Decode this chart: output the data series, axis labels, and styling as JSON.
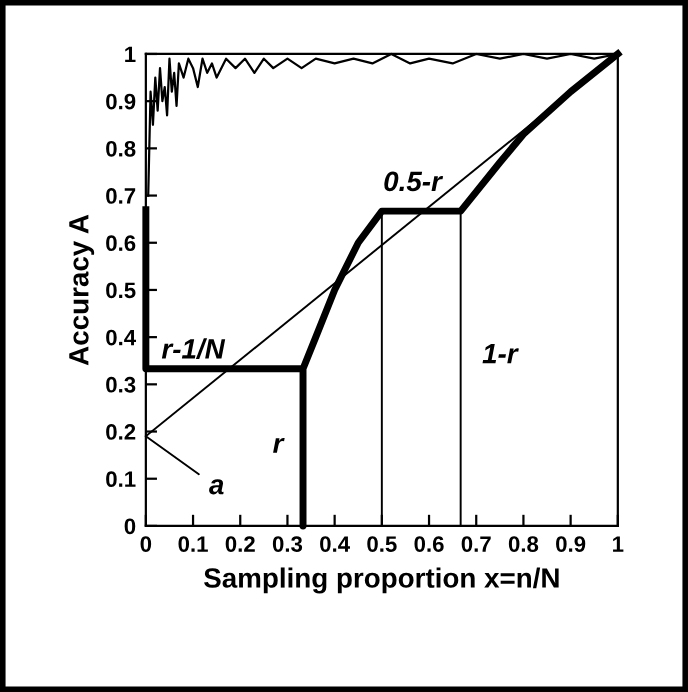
{
  "chart_data": {
    "type": "line",
    "xlabel": "Sampling proportion x=n/N",
    "ylabel": "Accuracy A",
    "xlim": [
      0,
      1
    ],
    "ylim": [
      0,
      1
    ],
    "xticks": [
      0,
      0.1,
      0.2,
      0.3,
      0.4,
      0.5,
      0.6,
      0.7,
      0.8,
      0.9,
      1
    ],
    "yticks": [
      0,
      0.1,
      0.2,
      0.3,
      0.4,
      0.5,
      0.6,
      0.7,
      0.8,
      0.9,
      1
    ],
    "grid": false,
    "legend": false,
    "marker": "none",
    "line_style": "solid",
    "series": [
      {
        "color": "#000000",
        "x": [
          0.005,
          0.01,
          0.015,
          0.02,
          0.025,
          0.03,
          0.035,
          0.04,
          0.045,
          0.05,
          0.055,
          0.06,
          0.065,
          0.07,
          0.08,
          0.09,
          0.1,
          0.11,
          0.12,
          0.13,
          0.14,
          0.15,
          0.17,
          0.19,
          0.21,
          0.23,
          0.25,
          0.27,
          0.3,
          0.33,
          0.36,
          0.4,
          0.44,
          0.48,
          0.52,
          0.56,
          0.6,
          0.65,
          0.7,
          0.75,
          0.8,
          0.85,
          0.9,
          0.95,
          1.0
        ],
        "values": [
          0.7,
          0.92,
          0.85,
          0.95,
          0.88,
          0.97,
          0.9,
          0.93,
          0.87,
          0.99,
          0.92,
          0.96,
          0.89,
          0.98,
          0.95,
          0.99,
          0.97,
          0.93,
          0.99,
          0.96,
          0.98,
          0.95,
          0.99,
          0.97,
          0.99,
          0.96,
          0.99,
          0.97,
          0.99,
          0.97,
          0.99,
          0.98,
          0.99,
          0.98,
          1.0,
          0.98,
          0.99,
          0.98,
          1.0,
          0.99,
          1.0,
          0.99,
          1.0,
          0.99,
          1.0
        ]
      },
      {
        "color": "#000000",
        "x": [
          0,
          0,
          0.333,
          0.333,
          0.333,
          0.36,
          0.4,
          0.45,
          0.5,
          0.667,
          0.75,
          0.8,
          0.9,
          1.0
        ],
        "values": [
          0.67,
          0.333,
          0.333,
          0,
          0.333,
          0.4,
          0.5,
          0.6,
          0.667,
          0.667,
          0.77,
          0.83,
          0.92,
          1.0
        ]
      },
      {
        "color": "#000000",
        "x": [
          0,
          1
        ],
        "values": [
          0.19,
          1.0
        ]
      },
      {
        "color": "#000000",
        "x": [
          0.5,
          0.5
        ],
        "values": [
          0,
          0.667
        ]
      },
      {
        "color": "#000000",
        "x": [
          0.667,
          0.667
        ],
        "values": [
          0,
          0.667
        ]
      }
    ],
    "annotations": [
      "r-1/N",
      "0.5-r",
      "1-r",
      "r",
      {
        "text": "a",
        "x": 0,
        "y": 0.19
      }
    ]
  }
}
